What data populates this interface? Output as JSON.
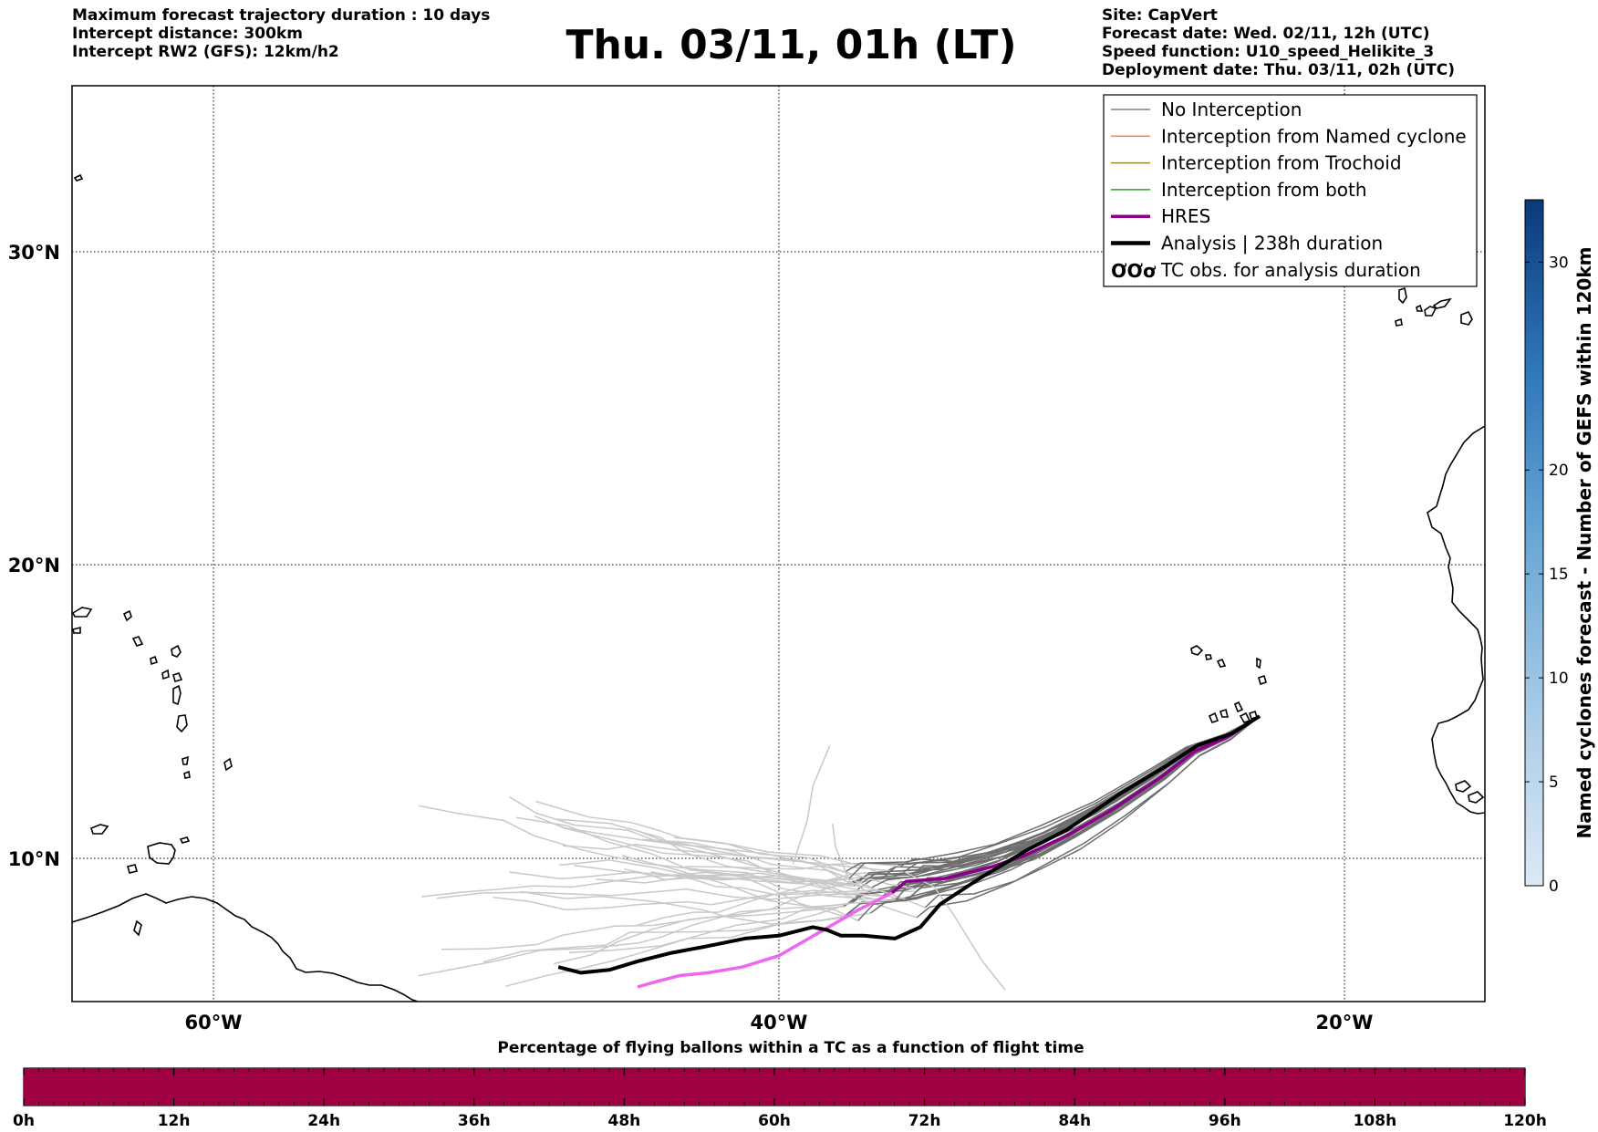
{
  "header_left": {
    "line1": "Maximum forecast trajectory duration : 10 days",
    "line2": "Intercept distance: 300km",
    "line3": "Intercept RW2 (GFS):  12km/h2"
  },
  "title": "Thu. 03/11, 01h (LT)",
  "header_right": {
    "line1": "Site: CapVert",
    "line2": "Forecast date: Wed. 02/11, 12h (UTC)",
    "line3": "Speed function: U10_speed_Helikite_3",
    "line4": "Deployment date: Thu. 03/11, 02h (UTC)"
  },
  "map": {
    "lon_range": [
      -65,
      -15
    ],
    "lat_range": [
      5.5,
      34.5
    ],
    "lon_ticks": [
      {
        "value": -60,
        "label": "60°W"
      },
      {
        "value": -40,
        "label": "40°W"
      },
      {
        "value": -20,
        "label": "20°W"
      }
    ],
    "lat_ticks": [
      {
        "value": 30,
        "label": "30°N"
      },
      {
        "value": 20,
        "label": "20°N"
      },
      {
        "value": 10,
        "label": "10°N"
      }
    ],
    "grid": true,
    "legend_position": "top-right"
  },
  "legend": {
    "items": [
      {
        "label": "No Interception",
        "color": "#808080",
        "style": "thin"
      },
      {
        "label": "Interception from Named cyclone",
        "color": "#ff7f50",
        "style": "thin"
      },
      {
        "label": "Interception from Trochoid",
        "color": "#9a8a30",
        "style": "thin"
      },
      {
        "label": "Interception from both",
        "color": "#2ca02c",
        "style": "thin"
      },
      {
        "label": "HRES",
        "color": "#8b008b",
        "style": "medium"
      },
      {
        "label": "Analysis | 238h duration",
        "color": "#000000",
        "style": "thick"
      },
      {
        "label": "TC obs. for analysis duration",
        "color": "#000000",
        "style": "symbol",
        "symbol": "ƠƠơ"
      }
    ]
  },
  "trajectories": {
    "start": {
      "lon": -23.0,
      "lat": 14.9
    },
    "analysis": [
      [
        -23.0,
        14.9
      ],
      [
        -24.0,
        14.3
      ],
      [
        -25.2,
        13.9
      ],
      [
        -26.3,
        13.2
      ],
      [
        -28.0,
        12.2
      ],
      [
        -29.8,
        11.0
      ],
      [
        -31.2,
        10.3
      ],
      [
        -32.9,
        9.3
      ],
      [
        -34.3,
        8.4
      ],
      [
        -35.0,
        7.6
      ],
      [
        -35.9,
        7.2
      ],
      [
        -37.0,
        7.3
      ],
      [
        -37.8,
        7.3
      ],
      [
        -38.3,
        7.5
      ],
      [
        -38.8,
        7.6
      ],
      [
        -40.0,
        7.3
      ],
      [
        -41.2,
        7.2
      ],
      [
        -42.7,
        6.9
      ],
      [
        -43.8,
        6.7
      ],
      [
        -45.0,
        6.4
      ],
      [
        -46.0,
        6.1
      ],
      [
        -47.0,
        6.0
      ],
      [
        -47.8,
        6.2
      ]
    ],
    "hres_analysis_period": [
      [
        -23.0,
        14.9
      ],
      [
        -24.1,
        14.2
      ],
      [
        -25.3,
        13.7
      ],
      [
        -26.5,
        12.8
      ],
      [
        -28.2,
        11.7
      ],
      [
        -29.8,
        10.8
      ],
      [
        -31.3,
        10.1
      ],
      [
        -32.5,
        9.7
      ],
      [
        -34.1,
        9.3
      ],
      [
        -35.5,
        9.2
      ],
      [
        -36.0,
        8.8
      ]
    ],
    "hres_extended": [
      [
        -36.0,
        8.8
      ],
      [
        -37.2,
        8.2
      ],
      [
        -38.6,
        7.4
      ],
      [
        -40.0,
        6.6
      ],
      [
        -41.3,
        6.2
      ],
      [
        -42.5,
        6.0
      ],
      [
        -43.5,
        5.9
      ],
      [
        -44.3,
        5.7
      ],
      [
        -45.0,
        5.5
      ]
    ],
    "ensemble_members": 30
  },
  "colorbar_right": {
    "label": "Named cyclones forecast - Number of GEFS within 120km",
    "ticks": [
      0,
      5,
      10,
      15,
      20,
      30
    ],
    "max": 33,
    "color_low": "#d9e8f6",
    "color_high": "#0a3a7a"
  },
  "colorbar_bottom": {
    "title": "Percentage of flying ballons within a TC as a function of flight time",
    "ticks": [
      "0h",
      "12h",
      "24h",
      "36h",
      "48h",
      "60h",
      "72h",
      "84h",
      "96h",
      "108h",
      "120h"
    ],
    "fill_fraction": 1.0,
    "color": "#9e0040"
  }
}
